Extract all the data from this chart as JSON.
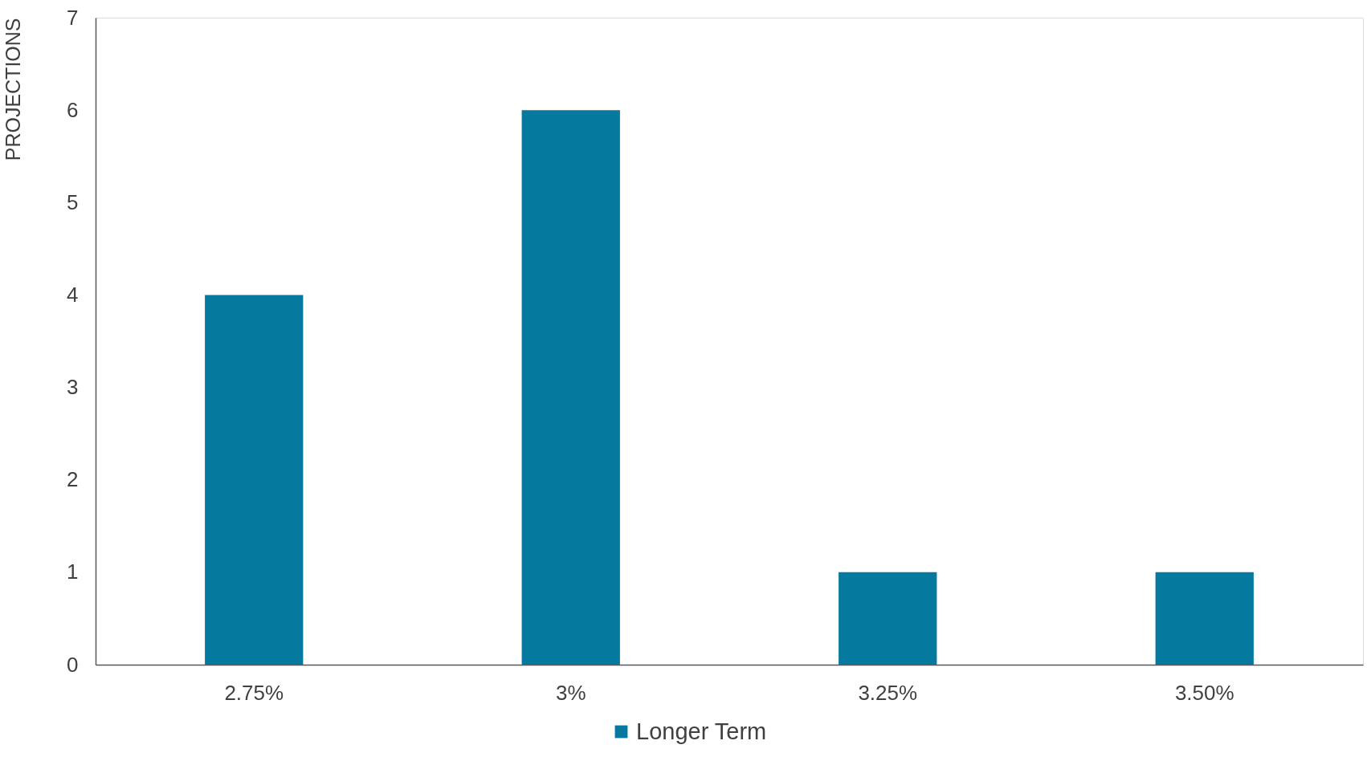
{
  "chart_data": {
    "type": "bar",
    "ylabel": "PROJECTIONS",
    "categories": [
      "2.75%",
      "3%",
      "3.25%",
      "3.50%"
    ],
    "series": [
      {
        "name": "Longer Term",
        "color": "#05799e",
        "values": [
          4,
          6,
          1,
          1
        ]
      }
    ],
    "ylim": [
      0,
      7
    ],
    "yticks": [
      0,
      1,
      2,
      3,
      4,
      5,
      6,
      7
    ],
    "legend": "bottom"
  }
}
